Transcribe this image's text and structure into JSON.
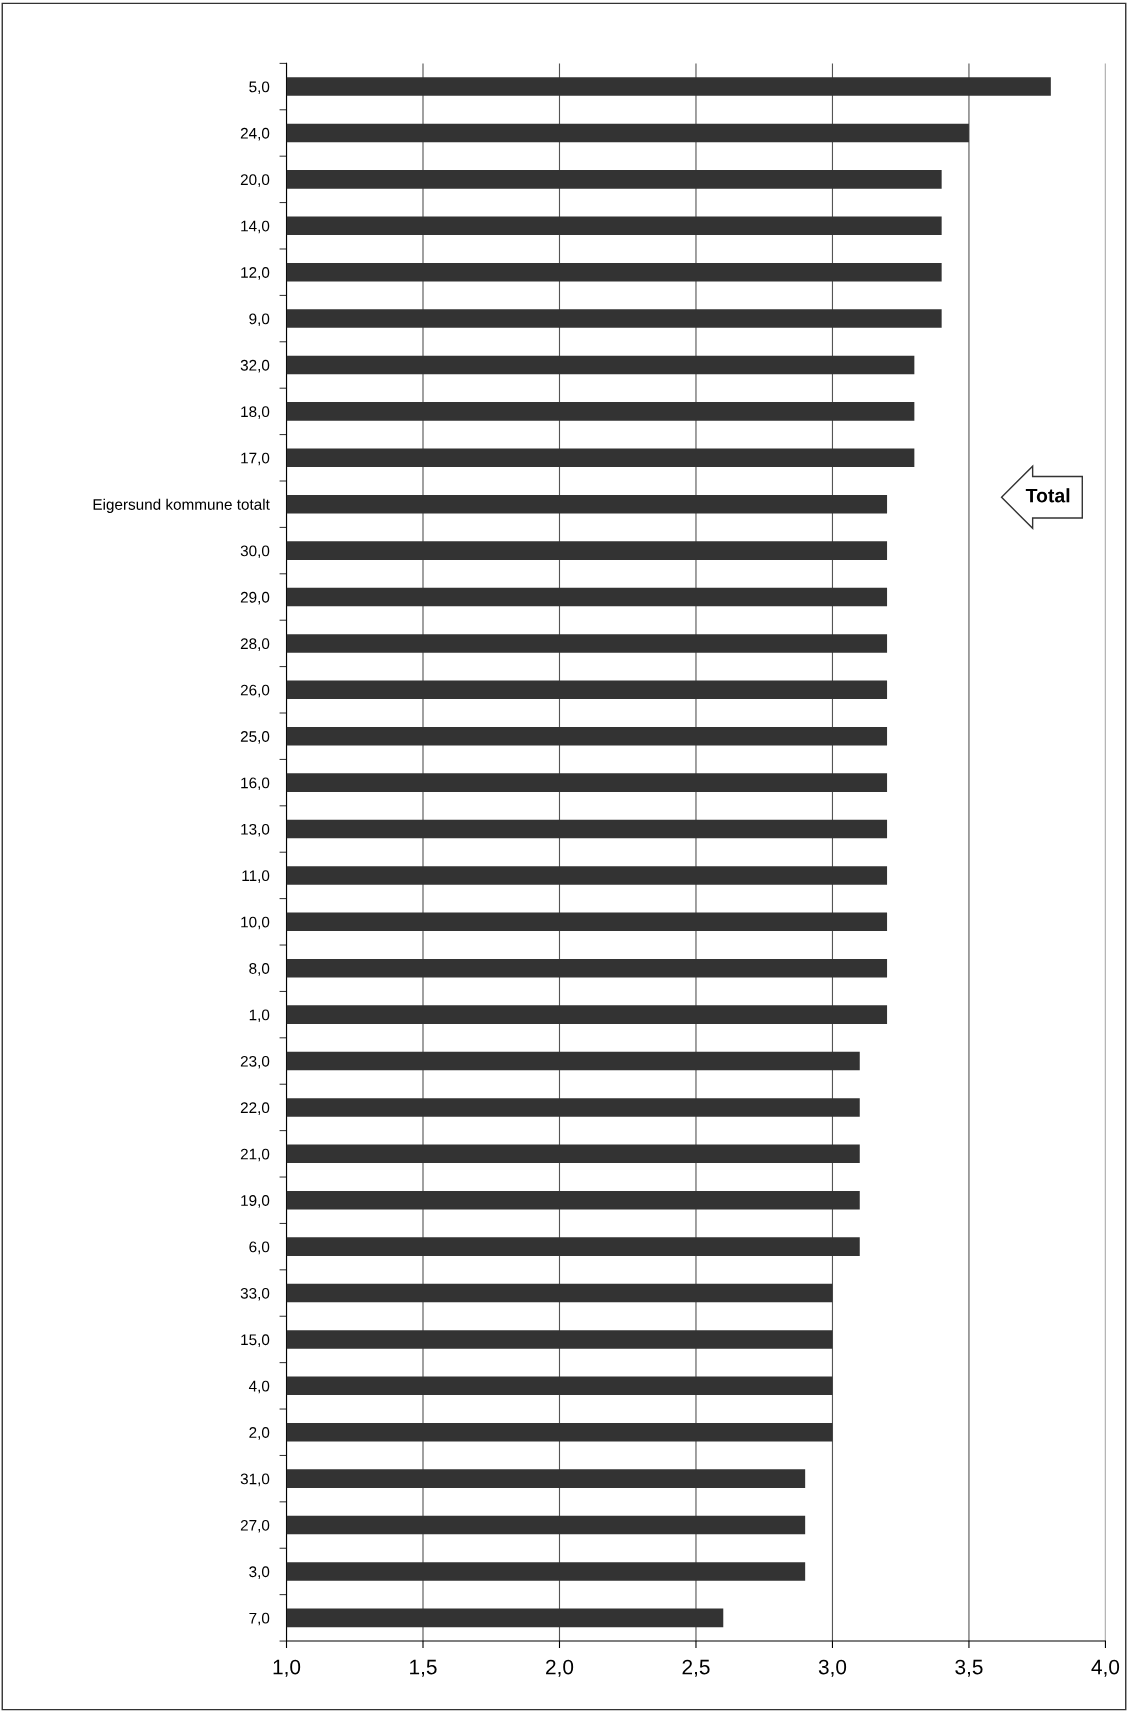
{
  "chart_data": {
    "type": "bar",
    "orientation": "horizontal",
    "categories": [
      "5,0",
      "24,0",
      "20,0",
      "14,0",
      "12,0",
      "9,0",
      "32,0",
      "18,0",
      "17,0",
      "Eigersund kommune totalt",
      "30,0",
      "29,0",
      "28,0",
      "26,0",
      "25,0",
      "16,0",
      "13,0",
      "11,0",
      "10,0",
      "8,0",
      "1,0",
      "23,0",
      "22,0",
      "21,0",
      "19,0",
      "6,0",
      "33,0",
      "15,0",
      "4,0",
      "2,0",
      "31,0",
      "27,0",
      "3,0",
      "7,0"
    ],
    "values": [
      3.8,
      3.5,
      3.4,
      3.4,
      3.4,
      3.4,
      3.3,
      3.3,
      3.3,
      3.2,
      3.2,
      3.2,
      3.2,
      3.2,
      3.2,
      3.2,
      3.2,
      3.2,
      3.2,
      3.2,
      3.2,
      3.1,
      3.1,
      3.1,
      3.1,
      3.1,
      3.0,
      3.0,
      3.0,
      3.0,
      2.9,
      2.9,
      2.9,
      2.6
    ],
    "color": "#333333",
    "xlim": [
      1.0,
      4.0
    ],
    "xticks": [
      {
        "value": 1.0,
        "label": "1,0"
      },
      {
        "value": 1.5,
        "label": "1,5"
      },
      {
        "value": 2.0,
        "label": "2,0"
      },
      {
        "value": 2.5,
        "label": "2,5"
      },
      {
        "value": 3.0,
        "label": "3,0"
      },
      {
        "value": 3.5,
        "label": "3,5"
      },
      {
        "value": 4.0,
        "label": "4,0"
      }
    ],
    "grid": "x",
    "annotations": [
      "Total"
    ]
  }
}
